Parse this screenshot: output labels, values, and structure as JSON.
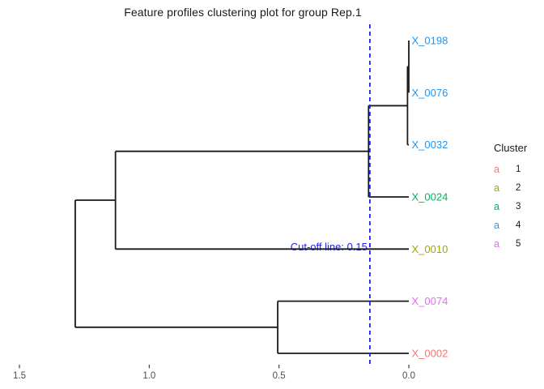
{
  "chart_data": {
    "type": "dendrogram",
    "title": "Feature profiles clustering plot for group Rep.1",
    "orientation": "horizontal, leaves on right, distance increases to the left",
    "axis": {
      "ticks": [
        "1.5",
        "1.0",
        "0.5",
        "0.0"
      ],
      "range": [
        1.5,
        0.0
      ],
      "grid": false,
      "axis_line": false
    },
    "cutoff": {
      "value": 0.15,
      "label": "Cut-off line: 0.15",
      "color": "#2222EE",
      "style": "dashed vertical line"
    },
    "branch_color": "#1a1a1a",
    "leaves": [
      {
        "label": "X_0198",
        "cluster": "4"
      },
      {
        "label": "X_0076",
        "cluster": "4"
      },
      {
        "label": "X_0032",
        "cluster": "4"
      },
      {
        "label": "X_0024",
        "cluster": "3"
      },
      {
        "label": "X_0010",
        "cluster": "2"
      },
      {
        "label": "X_0074",
        "cluster": "5"
      },
      {
        "label": "X_0002",
        "cluster": "1"
      }
    ],
    "merges": [
      {
        "a": "L0",
        "b": "L1",
        "height": 0.0
      },
      {
        "a": "M0",
        "b": "L2",
        "height": 0.005
      },
      {
        "a": "M1",
        "b": "L3",
        "height": 0.155
      },
      {
        "a": "M2",
        "b": "L4",
        "height": 1.13
      },
      {
        "a": "L5",
        "b": "L6",
        "height": 0.505
      },
      {
        "a": "M3",
        "b": "M4",
        "height": 1.285
      }
    ],
    "cluster_colors": {
      "1": "#F8766D",
      "2": "#A3A500",
      "3": "#00B25D",
      "4": "#2196F3",
      "5": "#E76BF3"
    },
    "legend": {
      "title": "Cluster",
      "key_glyph": "a",
      "position": "right",
      "entries": [
        {
          "label": "1",
          "cluster": "1"
        },
        {
          "label": "2",
          "cluster": "2"
        },
        {
          "label": "3",
          "cluster": "3"
        },
        {
          "label": "4",
          "cluster": "4"
        },
        {
          "label": "5",
          "cluster": "5"
        }
      ]
    },
    "tick_label_color": "#4d4d4d"
  }
}
